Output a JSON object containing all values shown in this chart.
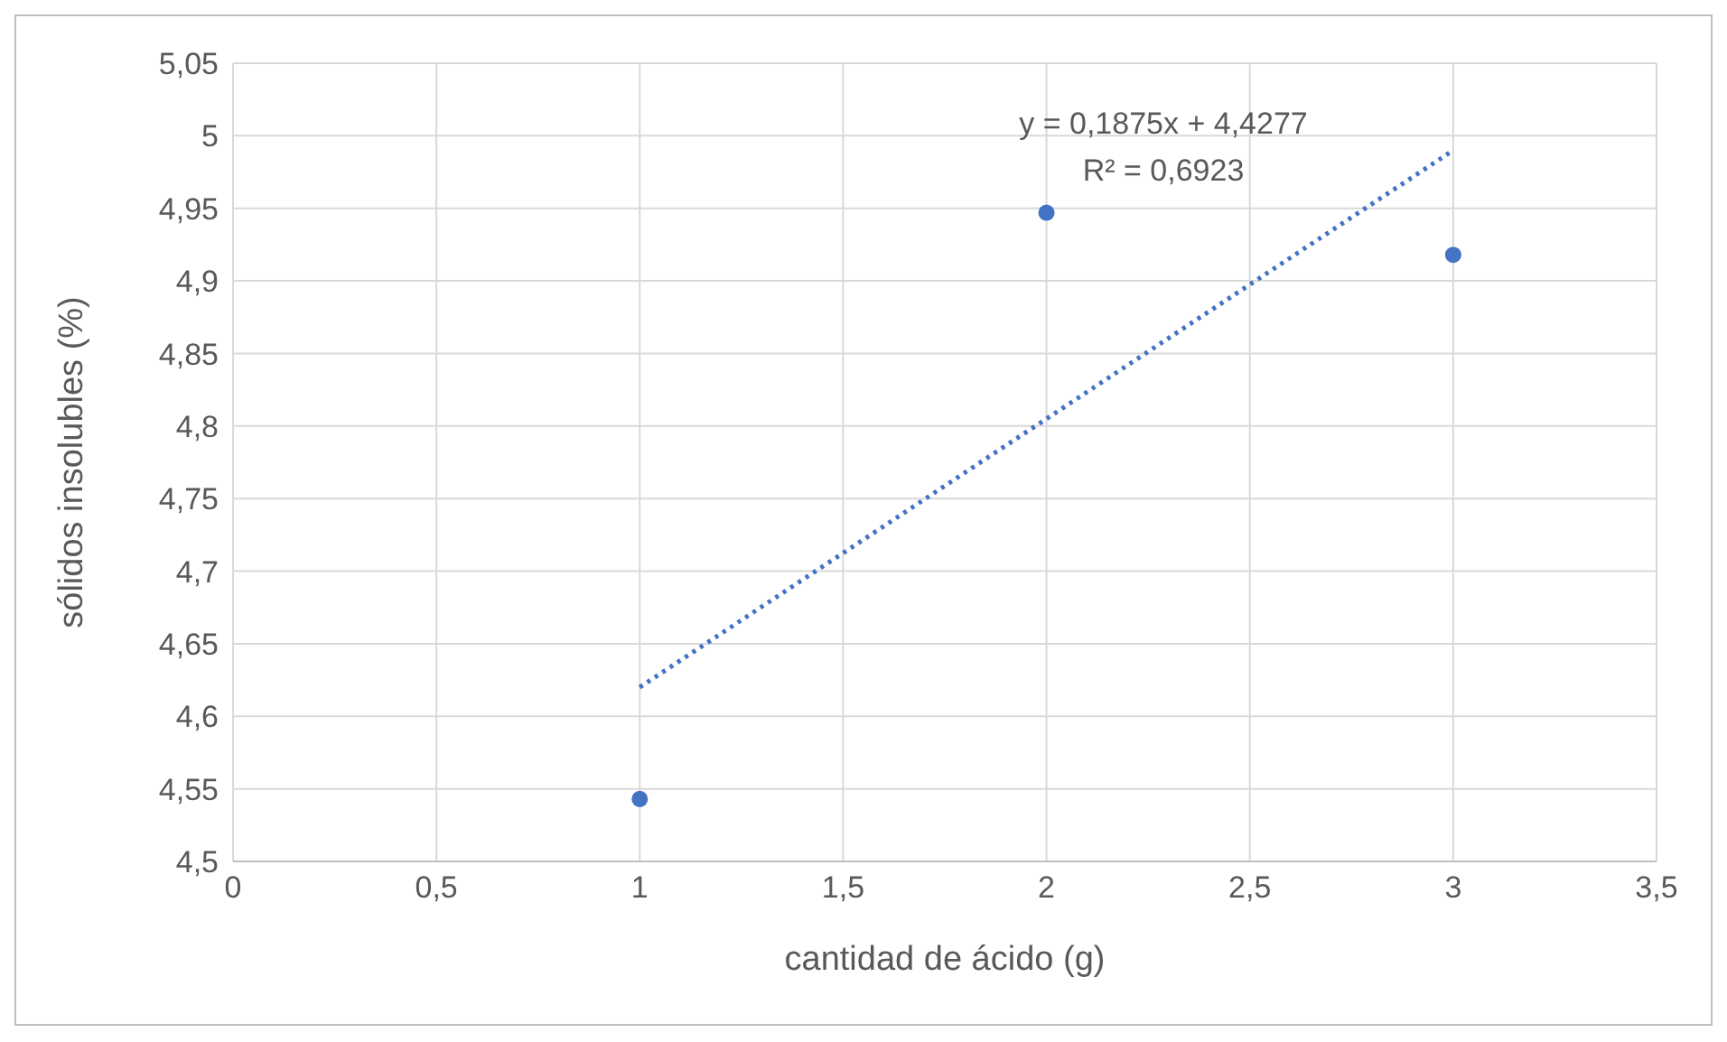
{
  "chart_data": {
    "type": "scatter",
    "xlabel": "cantidad de ácido (g)",
    "ylabel": "sólidos insolubles (%)",
    "xlim": [
      0,
      3.5
    ],
    "xticks": [
      0,
      {
        "value": 0.5,
        "label": "0,5"
      },
      1,
      {
        "value": 1.5,
        "label": "1,5"
      },
      2,
      {
        "value": 2.5,
        "label": "2,5"
      },
      3,
      {
        "value": 3.5,
        "label": "3,5"
      }
    ],
    "ylim": [
      4.5,
      5.05
    ],
    "yticks": [
      {
        "value": 4.5,
        "label": "4,5"
      },
      {
        "value": 4.55,
        "label": "4,55"
      },
      {
        "value": 4.6,
        "label": "4,6"
      },
      {
        "value": 4.65,
        "label": "4,65"
      },
      {
        "value": 4.7,
        "label": "4,7"
      },
      {
        "value": 4.75,
        "label": "4,75"
      },
      {
        "value": 4.8,
        "label": "4,8"
      },
      {
        "value": 4.85,
        "label": "4,85"
      },
      {
        "value": 4.9,
        "label": "4,9"
      },
      {
        "value": 4.95,
        "label": "4,95"
      },
      5,
      {
        "value": 5.05,
        "label": "5,05"
      }
    ],
    "grid": true,
    "legend": false,
    "series": [
      {
        "type": "scatter",
        "color": "#4472c4",
        "marker": "circle",
        "x": [
          1,
          2,
          3
        ],
        "values": [
          4.543,
          4.947,
          4.918
        ]
      },
      {
        "type": "line",
        "color": "#4472c4",
        "marker": "none",
        "line_style": "dotted",
        "x": [
          1,
          3
        ],
        "values": [
          4.62,
          4.99
        ]
      }
    ],
    "annotations": [
      "y = 0,1875x + 4,4277",
      "R² = 0,6923"
    ]
  }
}
